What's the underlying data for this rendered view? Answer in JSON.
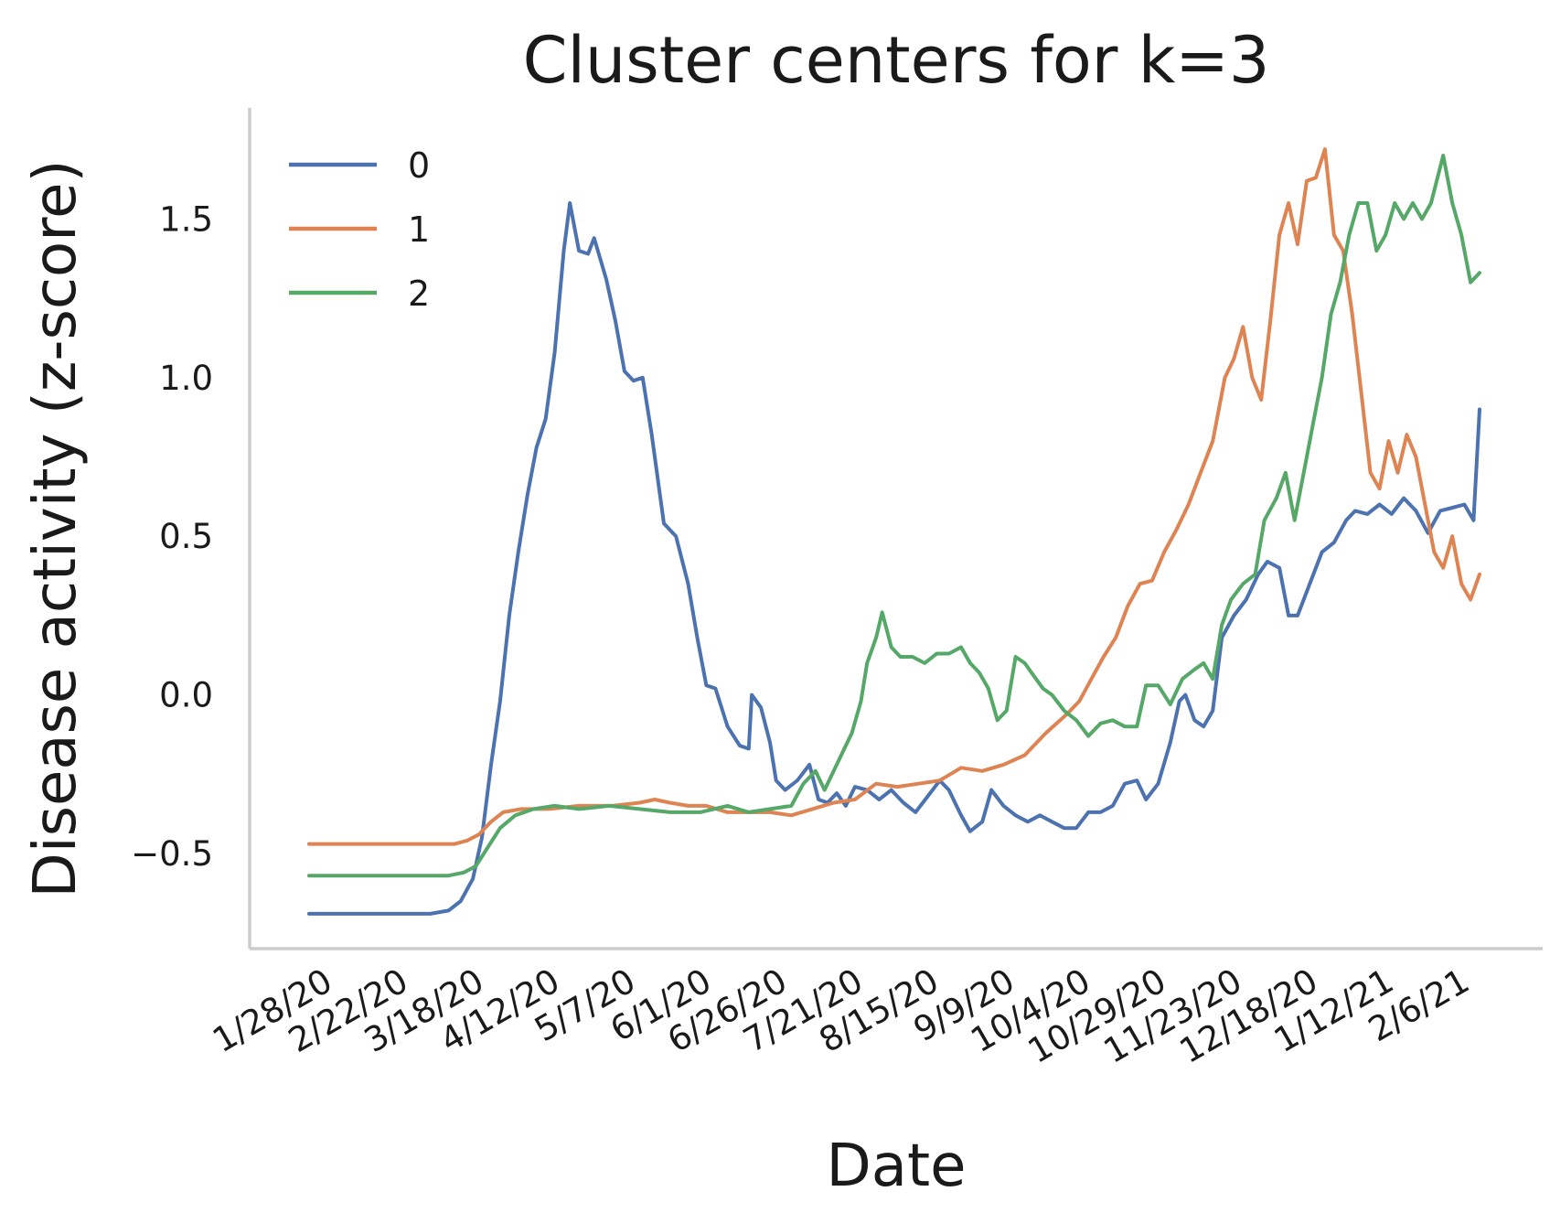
{
  "chart_data": {
    "type": "line",
    "title": "Cluster centers for k=3",
    "xlabel": "Date",
    "ylabel": "Disease activity (z-score)",
    "x_start": "1/22/20",
    "x_end": "2/11/21",
    "ylim": [
      -0.8,
      1.85
    ],
    "yticks": [
      -0.5,
      0.0,
      0.5,
      1.0,
      1.5
    ],
    "ytick_labels": [
      "−0.5",
      "0.0",
      "0.5",
      "1.0",
      "1.5"
    ],
    "xtick_labels": [
      "1/28/20",
      "2/22/20",
      "3/18/20",
      "4/12/20",
      "5/7/20",
      "6/1/20",
      "6/26/20",
      "7/21/20",
      "8/15/20",
      "9/9/20",
      "10/4/20",
      "10/29/20",
      "11/23/20",
      "12/18/20",
      "1/12/21",
      "2/6/21"
    ],
    "grid": false,
    "legend_position": "upper-left",
    "series": [
      {
        "name": "0",
        "color": "#4c72b0",
        "points": [
          [
            "1/22/20",
            -0.69
          ],
          [
            "3/2/20",
            -0.69
          ],
          [
            "3/8/20",
            -0.68
          ],
          [
            "3/12/20",
            -0.65
          ],
          [
            "3/16/20",
            -0.58
          ],
          [
            "3/19/20",
            -0.45
          ],
          [
            "3/22/20",
            -0.22
          ],
          [
            "3/25/20",
            -0.02
          ],
          [
            "3/28/20",
            0.25
          ],
          [
            "3/31/20",
            0.45
          ],
          [
            "4/3/20",
            0.63
          ],
          [
            "4/6/20",
            0.78
          ],
          [
            "4/9/20",
            0.87
          ],
          [
            "4/12/20",
            1.08
          ],
          [
            "4/15/20",
            1.4
          ],
          [
            "4/17/20",
            1.55
          ],
          [
            "4/20/20",
            1.4
          ],
          [
            "4/23/20",
            1.39
          ],
          [
            "4/25/20",
            1.44
          ],
          [
            "4/29/20",
            1.31
          ],
          [
            "5/2/20",
            1.18
          ],
          [
            "5/5/20",
            1.02
          ],
          [
            "5/8/20",
            0.99
          ],
          [
            "5/11/20",
            1.0
          ],
          [
            "5/14/20",
            0.82
          ],
          [
            "5/18/20",
            0.54
          ],
          [
            "5/22/20",
            0.5
          ],
          [
            "5/26/20",
            0.35
          ],
          [
            "5/29/20",
            0.18
          ],
          [
            "6/1/20",
            0.03
          ],
          [
            "6/4/20",
            0.02
          ],
          [
            "6/8/20",
            -0.1
          ],
          [
            "6/12/20",
            -0.16
          ],
          [
            "6/15/20",
            -0.17
          ],
          [
            "6/16/20",
            0.0
          ],
          [
            "6/19/20",
            -0.04
          ],
          [
            "6/22/20",
            -0.15
          ],
          [
            "6/24/20",
            -0.27
          ],
          [
            "6/27/20",
            -0.3
          ],
          [
            "7/1/20",
            -0.27
          ],
          [
            "7/5/20",
            -0.22
          ],
          [
            "7/8/20",
            -0.33
          ],
          [
            "7/11/20",
            -0.34
          ],
          [
            "7/14/20",
            -0.31
          ],
          [
            "7/17/20",
            -0.35
          ],
          [
            "7/20/20",
            -0.29
          ],
          [
            "7/24/20",
            -0.3
          ],
          [
            "7/28/20",
            -0.33
          ],
          [
            "8/1/20",
            -0.3
          ],
          [
            "8/5/20",
            -0.34
          ],
          [
            "8/9/20",
            -0.37
          ],
          [
            "8/13/20",
            -0.32
          ],
          [
            "8/17/20",
            -0.27
          ],
          [
            "8/20/20",
            -0.3
          ],
          [
            "8/24/20",
            -0.38
          ],
          [
            "8/27/20",
            -0.43
          ],
          [
            "8/31/20",
            -0.4
          ],
          [
            "9/3/20",
            -0.3
          ],
          [
            "9/7/20",
            -0.35
          ],
          [
            "9/11/20",
            -0.38
          ],
          [
            "9/15/20",
            -0.4
          ],
          [
            "9/19/20",
            -0.38
          ],
          [
            "9/23/20",
            -0.4
          ],
          [
            "9/27/20",
            -0.42
          ],
          [
            "10/1/20",
            -0.42
          ],
          [
            "10/5/20",
            -0.37
          ],
          [
            "10/9/20",
            -0.37
          ],
          [
            "10/13/20",
            -0.35
          ],
          [
            "10/17/20",
            -0.28
          ],
          [
            "10/21/20",
            -0.27
          ],
          [
            "10/24/20",
            -0.33
          ],
          [
            "10/28/20",
            -0.28
          ],
          [
            "11/1/20",
            -0.15
          ],
          [
            "11/4/20",
            -0.02
          ],
          [
            "11/6/20",
            0.0
          ],
          [
            "11/9/20",
            -0.08
          ],
          [
            "11/12/20",
            -0.1
          ],
          [
            "11/15/20",
            -0.05
          ],
          [
            "11/18/20",
            0.18
          ],
          [
            "11/22/20",
            0.25
          ],
          [
            "11/26/20",
            0.3
          ],
          [
            "11/30/20",
            0.38
          ],
          [
            "12/3/20",
            0.42
          ],
          [
            "12/7/20",
            0.4
          ],
          [
            "12/10/20",
            0.25
          ],
          [
            "12/13/20",
            0.25
          ],
          [
            "12/17/20",
            0.35
          ],
          [
            "12/21/20",
            0.45
          ],
          [
            "12/25/20",
            0.48
          ],
          [
            "12/29/20",
            0.55
          ],
          [
            "1/1/21",
            0.58
          ],
          [
            "1/5/21",
            0.57
          ],
          [
            "1/9/21",
            0.6
          ],
          [
            "1/13/21",
            0.57
          ],
          [
            "1/17/21",
            0.62
          ],
          [
            "1/21/21",
            0.58
          ],
          [
            "1/25/21",
            0.51
          ],
          [
            "1/29/21",
            0.58
          ],
          [
            "2/2/21",
            0.59
          ],
          [
            "2/6/21",
            0.6
          ],
          [
            "2/9/21",
            0.55
          ],
          [
            "2/11/21",
            0.9
          ]
        ]
      },
      {
        "name": "1",
        "color": "#dd8452",
        "points": [
          [
            "1/22/20",
            -0.47
          ],
          [
            "3/10/20",
            -0.47
          ],
          [
            "3/14/20",
            -0.46
          ],
          [
            "3/18/20",
            -0.44
          ],
          [
            "3/22/20",
            -0.4
          ],
          [
            "3/26/20",
            -0.37
          ],
          [
            "4/1/20",
            -0.36
          ],
          [
            "4/10/20",
            -0.36
          ],
          [
            "4/20/20",
            -0.35
          ],
          [
            "5/1/20",
            -0.35
          ],
          [
            "5/10/20",
            -0.34
          ],
          [
            "5/15/20",
            -0.33
          ],
          [
            "5/20/20",
            -0.34
          ],
          [
            "5/26/20",
            -0.35
          ],
          [
            "6/1/20",
            -0.35
          ],
          [
            "6/8/20",
            -0.37
          ],
          [
            "6/15/20",
            -0.37
          ],
          [
            "6/22/20",
            -0.37
          ],
          [
            "6/29/20",
            -0.38
          ],
          [
            "7/6/20",
            -0.36
          ],
          [
            "7/13/20",
            -0.34
          ],
          [
            "7/20/20",
            -0.33
          ],
          [
            "7/27/20",
            -0.28
          ],
          [
            "8/3/20",
            -0.29
          ],
          [
            "8/10/20",
            -0.28
          ],
          [
            "8/17/20",
            -0.27
          ],
          [
            "8/24/20",
            -0.23
          ],
          [
            "8/31/20",
            -0.24
          ],
          [
            "9/7/20",
            -0.22
          ],
          [
            "9/14/20",
            -0.19
          ],
          [
            "9/21/20",
            -0.12
          ],
          [
            "9/28/20",
            -0.06
          ],
          [
            "10/2/20",
            -0.02
          ],
          [
            "10/6/20",
            0.05
          ],
          [
            "10/10/20",
            0.12
          ],
          [
            "10/14/20",
            0.18
          ],
          [
            "10/18/20",
            0.28
          ],
          [
            "10/22/20",
            0.35
          ],
          [
            "10/26/20",
            0.36
          ],
          [
            "10/30/20",
            0.45
          ],
          [
            "11/3/20",
            0.52
          ],
          [
            "11/7/20",
            0.6
          ],
          [
            "11/11/20",
            0.7
          ],
          [
            "11/15/20",
            0.8
          ],
          [
            "11/19/20",
            1.0
          ],
          [
            "11/22/20",
            1.06
          ],
          [
            "11/25/20",
            1.16
          ],
          [
            "11/28/20",
            1.0
          ],
          [
            "12/1/20",
            0.93
          ],
          [
            "12/4/20",
            1.18
          ],
          [
            "12/7/20",
            1.45
          ],
          [
            "12/10/20",
            1.55
          ],
          [
            "12/13/20",
            1.42
          ],
          [
            "12/16/20",
            1.62
          ],
          [
            "12/19/20",
            1.63
          ],
          [
            "12/22/20",
            1.72
          ],
          [
            "12/25/20",
            1.45
          ],
          [
            "12/28/20",
            1.4
          ],
          [
            "12/31/20",
            1.2
          ],
          [
            "1/3/21",
            0.95
          ],
          [
            "1/6/21",
            0.7
          ],
          [
            "1/9/21",
            0.65
          ],
          [
            "1/12/21",
            0.8
          ],
          [
            "1/15/21",
            0.7
          ],
          [
            "1/18/21",
            0.82
          ],
          [
            "1/21/21",
            0.75
          ],
          [
            "1/24/21",
            0.6
          ],
          [
            "1/27/21",
            0.45
          ],
          [
            "1/30/21",
            0.4
          ],
          [
            "2/2/21",
            0.5
          ],
          [
            "2/5/21",
            0.35
          ],
          [
            "2/8/21",
            0.3
          ],
          [
            "2/11/21",
            0.38
          ]
        ]
      },
      {
        "name": "2",
        "color": "#55a868",
        "points": [
          [
            "1/22/20",
            -0.57
          ],
          [
            "3/8/20",
            -0.57
          ],
          [
            "3/13/20",
            -0.56
          ],
          [
            "3/17/20",
            -0.54
          ],
          [
            "3/21/20",
            -0.48
          ],
          [
            "3/25/20",
            -0.42
          ],
          [
            "3/30/20",
            -0.38
          ],
          [
            "4/5/20",
            -0.36
          ],
          [
            "4/12/20",
            -0.35
          ],
          [
            "4/20/20",
            -0.36
          ],
          [
            "4/30/20",
            -0.35
          ],
          [
            "5/10/20",
            -0.36
          ],
          [
            "5/20/20",
            -0.37
          ],
          [
            "5/30/20",
            -0.37
          ],
          [
            "6/8/20",
            -0.35
          ],
          [
            "6/15/20",
            -0.37
          ],
          [
            "6/22/20",
            -0.36
          ],
          [
            "6/29/20",
            -0.35
          ],
          [
            "7/3/20",
            -0.28
          ],
          [
            "7/7/20",
            -0.24
          ],
          [
            "7/10/20",
            -0.3
          ],
          [
            "7/13/20",
            -0.24
          ],
          [
            "7/16/20",
            -0.18
          ],
          [
            "7/19/20",
            -0.12
          ],
          [
            "7/22/20",
            -0.02
          ],
          [
            "7/24/20",
            0.1
          ],
          [
            "7/27/20",
            0.18
          ],
          [
            "7/29/20",
            0.26
          ],
          [
            "8/1/20",
            0.15
          ],
          [
            "8/4/20",
            0.12
          ],
          [
            "8/8/20",
            0.12
          ],
          [
            "8/12/20",
            0.1
          ],
          [
            "8/16/20",
            0.13
          ],
          [
            "8/20/20",
            0.13
          ],
          [
            "8/24/20",
            0.15
          ],
          [
            "8/27/20",
            0.1
          ],
          [
            "8/30/20",
            0.07
          ],
          [
            "9/2/20",
            0.02
          ],
          [
            "9/5/20",
            -0.08
          ],
          [
            "9/8/20",
            -0.05
          ],
          [
            "9/11/20",
            0.12
          ],
          [
            "9/14/20",
            0.1
          ],
          [
            "9/17/20",
            0.06
          ],
          [
            "9/20/20",
            0.02
          ],
          [
            "9/23/20",
            0.0
          ],
          [
            "9/27/20",
            -0.05
          ],
          [
            "10/1/20",
            -0.08
          ],
          [
            "10/5/20",
            -0.13
          ],
          [
            "10/9/20",
            -0.09
          ],
          [
            "10/13/20",
            -0.08
          ],
          [
            "10/17/20",
            -0.1
          ],
          [
            "10/21/20",
            -0.1
          ],
          [
            "10/24/20",
            0.03
          ],
          [
            "10/28/20",
            0.03
          ],
          [
            "11/1/20",
            -0.03
          ],
          [
            "11/5/20",
            0.05
          ],
          [
            "11/9/20",
            0.08
          ],
          [
            "11/12/20",
            0.1
          ],
          [
            "11/15/20",
            0.05
          ],
          [
            "11/18/20",
            0.22
          ],
          [
            "11/21/20",
            0.3
          ],
          [
            "11/25/20",
            0.35
          ],
          [
            "11/29/20",
            0.38
          ],
          [
            "12/2/20",
            0.55
          ],
          [
            "12/6/20",
            0.62
          ],
          [
            "12/9/20",
            0.7
          ],
          [
            "12/12/20",
            0.55
          ],
          [
            "12/15/20",
            0.7
          ],
          [
            "12/18/20",
            0.85
          ],
          [
            "12/21/20",
            1.0
          ],
          [
            "12/24/20",
            1.2
          ],
          [
            "12/27/20",
            1.3
          ],
          [
            "12/30/20",
            1.45
          ],
          [
            "1/2/21",
            1.55
          ],
          [
            "1/5/21",
            1.55
          ],
          [
            "1/8/21",
            1.4
          ],
          [
            "1/11/21",
            1.45
          ],
          [
            "1/14/21",
            1.55
          ],
          [
            "1/17/21",
            1.5
          ],
          [
            "1/20/21",
            1.55
          ],
          [
            "1/23/21",
            1.5
          ],
          [
            "1/26/21",
            1.55
          ],
          [
            "1/30/21",
            1.7
          ],
          [
            "2/2/21",
            1.55
          ],
          [
            "2/5/21",
            1.45
          ],
          [
            "2/8/21",
            1.3
          ],
          [
            "2/11/21",
            1.33
          ]
        ]
      }
    ]
  }
}
